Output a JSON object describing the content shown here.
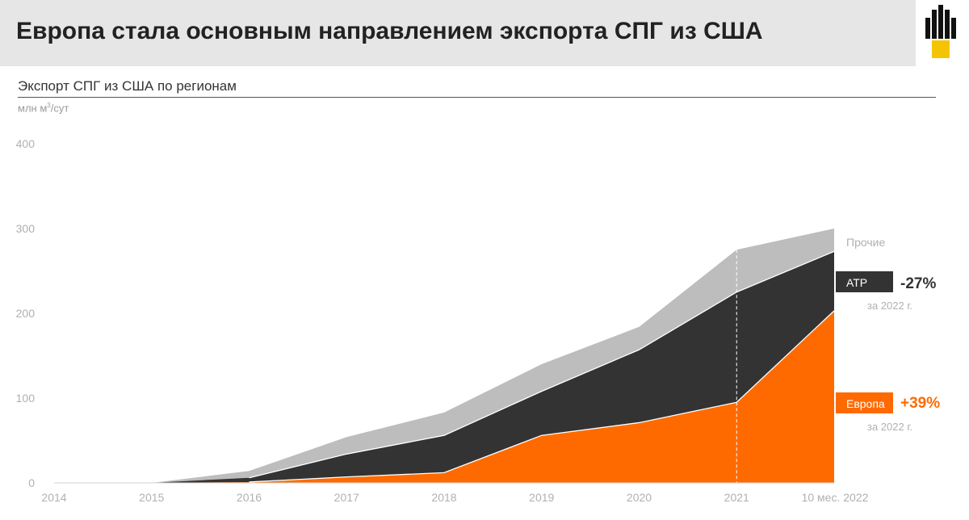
{
  "header": {
    "title": "Европа стала основным направлением экспорта СПГ из США"
  },
  "chart_title": "Экспорт СПГ из США по регионам",
  "units": {
    "main": "млн м",
    "sup": "3",
    "tail": "/сут"
  },
  "colors": {
    "europe": "#ff6a00",
    "atr": "#333333",
    "other": "#bdbdbd",
    "pct": "#333333"
  },
  "chart_data": {
    "type": "area",
    "stacked": true,
    "categories": [
      "2014",
      "2015",
      "2016",
      "2017",
      "2018",
      "2019",
      "2020",
      "2021",
      "10 мес. 2022"
    ],
    "ylim": [
      0,
      400
    ],
    "yticks": [
      0,
      100,
      200,
      300,
      400
    ],
    "grid": false,
    "series": [
      {
        "name": "Европа",
        "values": [
          0,
          0,
          1,
          7,
          12,
          56,
          71,
          95,
          203
        ]
      },
      {
        "name": "АТР",
        "values": [
          0,
          0,
          5,
          27,
          44,
          52,
          86,
          130,
          70
        ]
      },
      {
        "name": "Прочие",
        "values": [
          0,
          0,
          8,
          20,
          27,
          32,
          27,
          50,
          27
        ]
      }
    ],
    "annotations": [
      {
        "series": "Прочие",
        "label": "Прочие"
      },
      {
        "series": "АТР",
        "label": "АТР",
        "change": "-27%",
        "note": "за 2022 г."
      },
      {
        "series": "Европа",
        "label": "Европа",
        "change": "+39%",
        "note": "за 2022 г."
      }
    ]
  }
}
